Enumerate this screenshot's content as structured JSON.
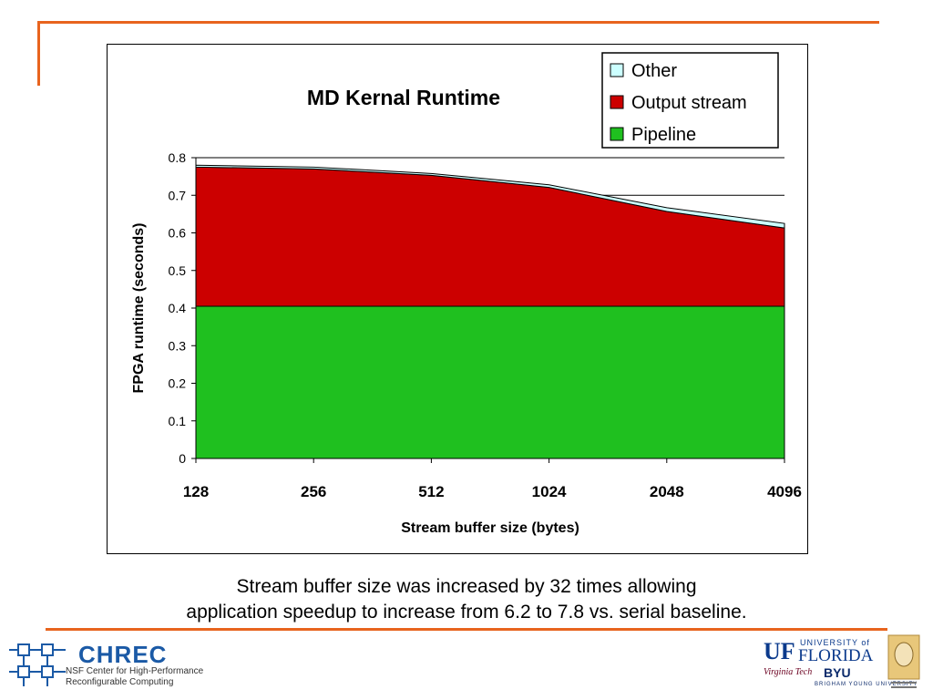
{
  "chart_data": {
    "type": "area",
    "title": "MD Kernal Runtime",
    "xlabel": "Stream buffer size (bytes)",
    "ylabel": "FPGA runtime (seconds)",
    "categories": [
      "128",
      "256",
      "512",
      "1024",
      "2048",
      "4096"
    ],
    "ylim": [
      0,
      0.8
    ],
    "yticks": [
      "0",
      "0.1",
      "0.2",
      "0.3",
      "0.4",
      "0.5",
      "0.6",
      "0.7",
      "0.8"
    ],
    "stacked": true,
    "grid": "horizontal",
    "legend_position": "top-right",
    "series": [
      {
        "name": "Pipeline",
        "color": "#1fc01f",
        "values": [
          0.405,
          0.405,
          0.405,
          0.405,
          0.405,
          0.405
        ]
      },
      {
        "name": "Output stream",
        "color": "#cc0000",
        "values": [
          0.37,
          0.365,
          0.348,
          0.316,
          0.252,
          0.208
        ]
      },
      {
        "name": "Other",
        "color": "#ccffff",
        "values": [
          0.005,
          0.005,
          0.005,
          0.007,
          0.01,
          0.012
        ]
      }
    ]
  },
  "caption": {
    "line1": "Stream buffer size was increased by 32 times allowing",
    "line2": "application speedup to increase from 6.2 to 7.8 vs. serial baseline."
  },
  "logos": {
    "chrec": {
      "name": "CHREC",
      "subtitle_line1": "NSF Center for High-Performance",
      "subtitle_line2": "Reconfigurable Computing"
    },
    "uf": {
      "mark": "UF",
      "university_of": "UNIVERSITY of",
      "florida": "FLORIDA"
    },
    "vt": {
      "text": "Virginia Tech"
    },
    "byu": {
      "mark": "BYU",
      "sub": "BRIGHAM YOUNG UNIVERSITY"
    }
  }
}
